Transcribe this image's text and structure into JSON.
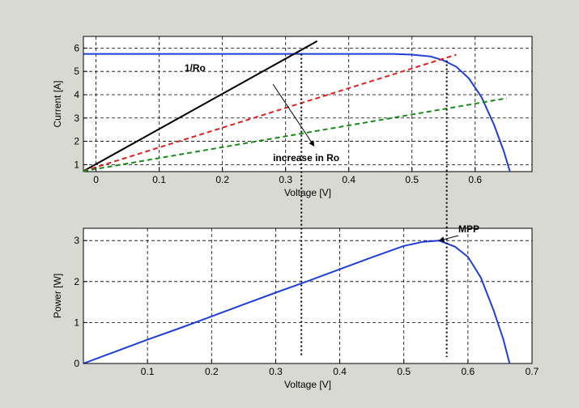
{
  "colors": {
    "figure_background": "#d9d9d3",
    "axes_background": "#ffffff",
    "iv_curve": "#1f3fd8",
    "load_line_black": "#000000",
    "load_line_red": "#e02020",
    "load_line_green": "#1a8a1a",
    "mpp_marker_line": "#000000"
  },
  "chart_data": [
    {
      "type": "line",
      "xlabel": "Voltage [V]",
      "ylabel": "Current [A]",
      "xlim": [
        -0.02,
        0.69
      ],
      "ylim": [
        0.7,
        6.5
      ],
      "xticks": [
        0,
        0.1,
        0.2,
        0.3,
        0.4,
        0.5,
        0.6
      ],
      "xtick_labels": [
        "0",
        "0.1",
        "0.2",
        "0.3",
        "0.4",
        "0.5",
        "0.6"
      ],
      "yticks": [
        1,
        2,
        3,
        4,
        5,
        6
      ],
      "ytick_labels": [
        "1",
        "2",
        "3",
        "4",
        "5",
        "6"
      ],
      "grid": true,
      "grid_style": "dashed",
      "series": [
        {
          "key": "iv_curve",
          "color": "#1f3fd8",
          "style": "solid",
          "x": [
            -0.02,
            0.47,
            0.5,
            0.53,
            0.55,
            0.57,
            0.59,
            0.61,
            0.63,
            0.645,
            0.655
          ],
          "y": [
            5.75,
            5.75,
            5.72,
            5.64,
            5.47,
            5.2,
            4.7,
            3.9,
            2.7,
            1.6,
            0.7
          ]
        },
        {
          "key": "load_line_1",
          "color": "#000000",
          "style": "solid",
          "x": [
            -0.02,
            0.35
          ],
          "y": [
            0.72,
            6.3
          ]
        },
        {
          "key": "load_line_2",
          "color": "#e02020",
          "style": "dashed",
          "x": [
            -0.02,
            0.57
          ],
          "y": [
            0.72,
            5.72
          ]
        },
        {
          "key": "load_line_3",
          "color": "#1a8a1a",
          "style": "dashed",
          "x": [
            -0.02,
            0.65
          ],
          "y": [
            0.72,
            3.85
          ]
        }
      ],
      "annotations": [
        {
          "text": "1/Ro",
          "x": 0.14,
          "y": 5.0
        },
        {
          "text": "increase in Ro",
          "x": 0.28,
          "y": 1.15
        }
      ],
      "arrow": {
        "from": [
          0.28,
          4.45
        ],
        "to": [
          0.345,
          1.8
        ]
      }
    },
    {
      "type": "line",
      "xlabel": "Voltage [V]",
      "ylabel": "Power [W]",
      "xlim": [
        0,
        0.7
      ],
      "ylim": [
        0,
        3.3
      ],
      "xticks": [
        0.1,
        0.2,
        0.3,
        0.4,
        0.5,
        0.6,
        0.7
      ],
      "xtick_labels": [
        "0.1",
        "0.2",
        "0.3",
        "0.4",
        "0.5",
        "0.6",
        "0.7"
      ],
      "yticks": [
        0,
        1,
        2,
        3
      ],
      "ytick_labels": [
        "0",
        "1",
        "2",
        "3"
      ],
      "grid": true,
      "grid_style": "dashed",
      "series": [
        {
          "key": "pv_curve",
          "color": "#1f3fd8",
          "style": "solid",
          "x": [
            0,
            0.05,
            0.1,
            0.15,
            0.2,
            0.25,
            0.3,
            0.35,
            0.4,
            0.45,
            0.5,
            0.53,
            0.555,
            0.58,
            0.6,
            0.62,
            0.64,
            0.655,
            0.665
          ],
          "y": [
            0,
            0.29,
            0.58,
            0.86,
            1.15,
            1.44,
            1.73,
            2.01,
            2.3,
            2.59,
            2.87,
            2.97,
            3.0,
            2.85,
            2.6,
            2.1,
            1.3,
            0.6,
            0
          ]
        }
      ],
      "annotations": [
        {
          "text": "MPP",
          "x": 0.585,
          "y": 3.2
        }
      ],
      "arrow": {
        "from": [
          0.585,
          3.12
        ],
        "to": [
          0.555,
          3.0
        ]
      }
    }
  ],
  "links": {
    "mpp_drop": {
      "x": 0.555,
      "top_y": 5.47,
      "bottom_y": 0
    },
    "ref_drop": {
      "x": 0.325,
      "top_y": 5.75,
      "bottom_y": 0
    }
  }
}
